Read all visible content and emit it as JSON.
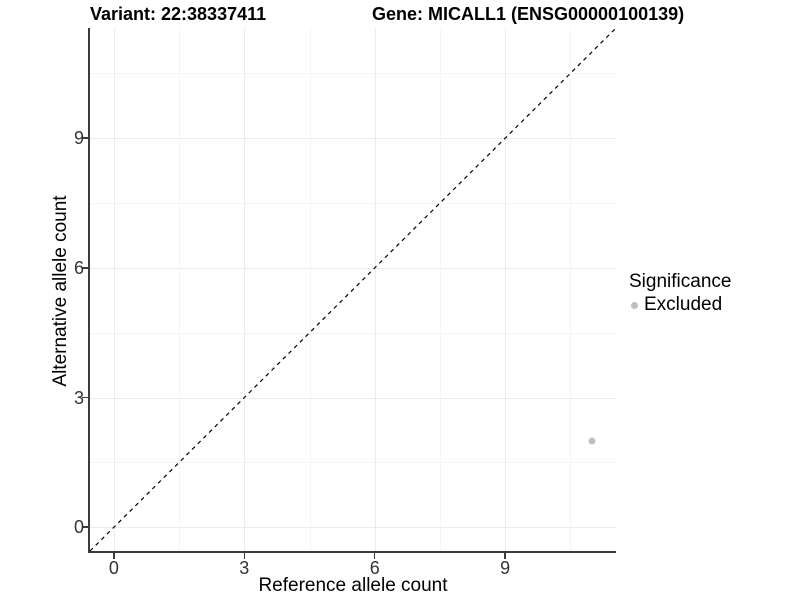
{
  "titles": {
    "variant": "Variant: 22:38337411",
    "gene": "Gene: MICALL1 (ENSG00000100139)"
  },
  "chart_data": {
    "type": "scatter",
    "xlabel": "Reference allele count",
    "ylabel": "Alternative allele count",
    "xlim": [
      -0.55,
      11.55
    ],
    "ylim": [
      -0.55,
      11.55
    ],
    "xticks": [
      0,
      3,
      6,
      9
    ],
    "yticks": [
      0,
      3,
      6,
      9
    ],
    "x_minor_ticks": [
      1.5,
      4.5,
      7.5,
      10.5
    ],
    "y_minor_ticks": [
      1.5,
      4.5,
      7.5,
      10.5
    ],
    "grid": true,
    "points": [
      {
        "x": 11,
        "y": 2,
        "series": "Excluded"
      }
    ],
    "reference_line": {
      "kind": "identity",
      "style": "dashed",
      "color": "#000000"
    },
    "series_colors": {
      "Excluded": "#c0c0c0"
    },
    "legend": {
      "title": "Significance",
      "position": "right",
      "items": [
        {
          "label": "Excluded",
          "color": "#bebebe"
        }
      ]
    }
  },
  "colors": {
    "axis_line": "#3c3c3c",
    "grid_major": "#ececec",
    "grid_minor": "#f5f5f5",
    "tick_text": "#333333"
  }
}
